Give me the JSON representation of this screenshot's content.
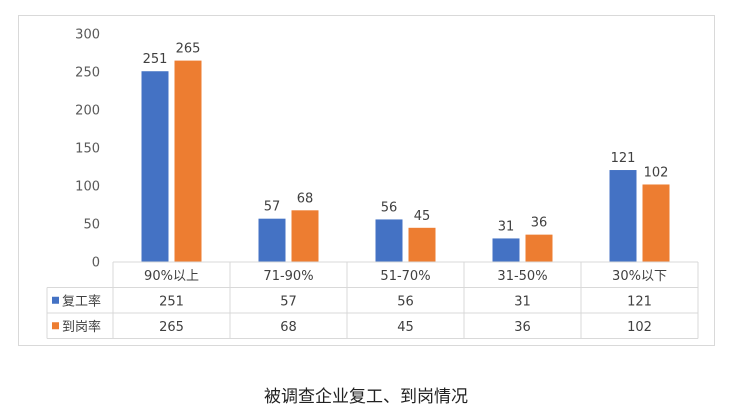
{
  "caption": "被调查企业复工、到岗情况",
  "colors": {
    "series1": "#4472C4",
    "series2": "#ED7D31",
    "grid": "#d9d9d9",
    "text": "#595959"
  },
  "chart_data": {
    "type": "bar",
    "categories": [
      "90%以上",
      "71-90%",
      "51-70%",
      "31-50%",
      "30%以下"
    ],
    "series": [
      {
        "name": "复工率",
        "values": [
          251,
          57,
          56,
          31,
          121
        ]
      },
      {
        "name": "到岗率",
        "values": [
          265,
          68,
          45,
          36,
          102
        ]
      }
    ],
    "ylim": [
      0,
      300
    ],
    "yticks": [
      0,
      50,
      100,
      150,
      200,
      250,
      300
    ],
    "grid": false,
    "data_labels": true,
    "legend": "data-table",
    "title": "",
    "xlabel": "",
    "ylabel": ""
  }
}
